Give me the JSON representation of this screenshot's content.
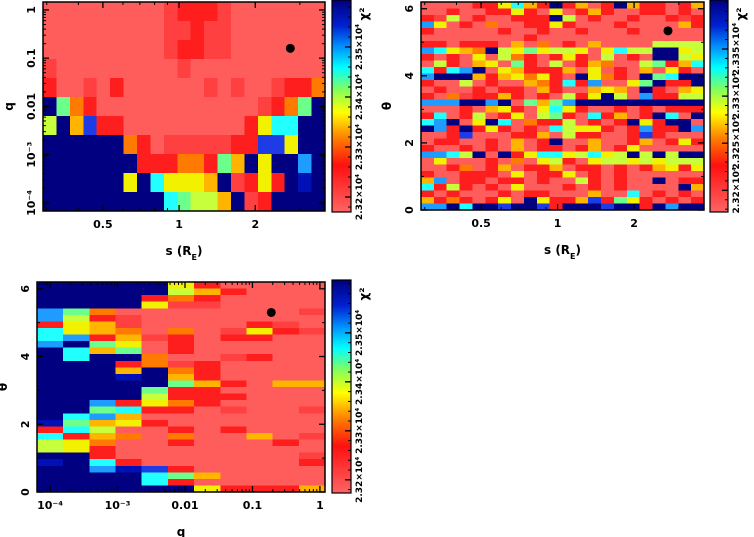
{
  "palette": {
    "P": "#ff5c5c",
    "r": "#ff4040",
    "R": "#ff1e1e",
    "O": "#ff7a00",
    "A": "#ffb400",
    "Y": "#f2f200",
    "L": "#c8ff3c",
    "G": "#6cff8c",
    "C": "#22ffff",
    "S": "#1e9cff",
    "U": "#1e3ce6",
    "D": "#0010b4",
    "N": "#000080"
  },
  "chart_data": [
    {
      "type": "heatmap",
      "title": "",
      "xlabel": "s (R_E)",
      "ylabel": "q",
      "xscale": "log",
      "xlim": [
        0.29,
        3.77
      ],
      "yscale": "log",
      "ylim": [
        6.8e-05,
        1.46
      ],
      "xticks": [
        {
          "v": 0.5,
          "label": "0.5"
        },
        {
          "v": 1,
          "label": "1"
        },
        {
          "v": 2,
          "label": "2"
        }
      ],
      "yticks": [
        {
          "v": 0.0001,
          "label": "10⁻⁴"
        },
        {
          "v": 0.001,
          "label": "10⁻³"
        },
        {
          "v": 0.01,
          "label": "0.01"
        },
        {
          "v": 0.1,
          "label": "0.1"
        },
        {
          "v": 1,
          "label": "1"
        }
      ],
      "best_fit": {
        "x": 2.75,
        "y": 0.16
      },
      "colorbar": {
        "label": "χ²",
        "clim": [
          23170,
          23594
        ],
        "ticks": [
          {
            "v": 23200,
            "label": "2.32×10⁴"
          },
          {
            "v": 23300,
            "label": "2.33×10⁴"
          },
          {
            "v": 23400,
            "label": "2.34×10⁴"
          },
          {
            "v": 23500,
            "label": "2.35×10⁴"
          }
        ]
      },
      "grid_rows_top_to_bottom": [
        "PPPPPPPPPrRRRrPPPPPPP",
        "PPPPPPPPPrrRrrPPPPPPP",
        "PPPPPPPPPrRRrrPPPPPPP",
        "rPPPPPPPPPrPPPPPPPPPP",
        "RPPrPRPPPPPPrPrPPrRRO",
        "NGORPPPPPPPPPPPPrROGN",
        "LNAURRPPPPPPPPPRYCCNN",
        "NNNNNNORPrrrrrRRUUYNN",
        "NNNNNNNRRROORGANYNNSN",
        "NNNNNNYNCYYYANrRYRNDN",
        "NNNNNNNNNCGLLANrRNNNN"
      ]
    },
    {
      "type": "heatmap",
      "title": "",
      "xlabel": "s (R_E)",
      "ylabel": "θ",
      "xscale": "log",
      "xlim": [
        0.29,
        3.77
      ],
      "yscale": "linear",
      "ylim": [
        0,
        6.2
      ],
      "xticks": [
        {
          "v": 0.5,
          "label": "0.5"
        },
        {
          "v": 1,
          "label": "1"
        },
        {
          "v": 2,
          "label": "2"
        }
      ],
      "yticks": [
        {
          "v": 0,
          "label": "0"
        },
        {
          "v": 2,
          "label": "2"
        },
        {
          "v": 4,
          "label": "4"
        },
        {
          "v": 6,
          "label": "6"
        }
      ],
      "best_fit": {
        "x": 2.72,
        "y": 5.34
      },
      "colorbar": {
        "label": "χ²",
        "clim": [
          23177,
          23402
        ],
        "ticks": [
          {
            "v": 23200,
            "label": "2.32×10⁴"
          },
          {
            "v": 23250,
            "label": "2.325×10⁴"
          },
          {
            "v": 23300,
            "label": "2.33×10⁴"
          },
          {
            "v": 23350,
            "label": "2.335×10⁴"
          }
        ]
      },
      "grid_rows_top_to_bottom": [
        "PPPPRRYCARNRAPRNARRPRA",
        "PPRPPRRYRPYPRARPPRRPRP",
        "RrLPRPPRRRNLPRPPRPPRrR",
        "SYPRPOPPRRYRPPPRPPPPAR",
        "RPPPPPRPPRPPRPPPRPPPPP",
        "PPPPPPPPRPPPPPPPPPPPPP",
        "RRPRRRPAPOPRPAPPPPLLLL",
        "SCYAONLYGYLLYPYCLLNNYL",
        "RPRPYPLORPRYRPLPRPNNLY",
        "PLRPAYPGRPLPRAOPPLGRAC",
        "CRCSNPYARRRAPYPRPAPYRP",
        "SNNNARAYOYRPNYORPNGCNN",
        "RPPLPRPPAORCRSPPYGNRRN",
        "PRPPRPRRPARPPAYAPNRPAY",
        "RPOrRRARPRPLRYNLPSRRLL",
        "SSSNNSNPGAGSNNNNNNNNNN",
        "PPPRPAYRPYCYRPPRPRPRRR",
        "RCPRLPRYPLGRPCRAPRNCPN",
        "CSNPYNCPORRLPRPRNYRNNP",
        "NSRNRYRPRPCLYYRPRSRRNS",
        "PPRUPPPRRAPLRRPPRURPPP",
        "PRRPPRPAPRNPPAPPRAPRYR",
        "RPPRPRPAPRRPRAPRYPPPPP",
        "SSCLNPNRYCCYLCYLNLNLNN",
        "PYPPPRPOPYLRPYLLYLYLLL",
        "PPROPRAPRRAPRRPRPRAYRY",
        "RPPRRRPYPRRYPRPRPPPPPP",
        "ASPRRPRRPRPPLRPRPPNPRR",
        "CRLRPRPYPPPRPRPRPPPPNA",
        "RPRPPPRPRRPPPAPPCPRPRP",
        "ARORPRYPNYRRAURGYRPRPR",
        "SSNCNNUNNURNNNUNNRNSNN"
      ]
    },
    {
      "type": "heatmap",
      "title": "",
      "xlabel": "q",
      "ylabel": "θ",
      "xscale": "log",
      "xlim": [
        6.4e-05,
        1.19
      ],
      "yscale": "linear",
      "ylim": [
        0,
        6.2
      ],
      "xticks": [
        {
          "v": 0.0001,
          "label": "10⁻⁴"
        },
        {
          "v": 0.001,
          "label": "10⁻³"
        },
        {
          "v": 0.01,
          "label": "0.01"
        },
        {
          "v": 0.1,
          "label": "0.1"
        },
        {
          "v": 1,
          "label": "1"
        }
      ],
      "yticks": [
        {
          "v": 0,
          "label": "0"
        },
        {
          "v": 2,
          "label": "2"
        },
        {
          "v": 4,
          "label": "4"
        },
        {
          "v": 6,
          "label": "6"
        }
      ],
      "best_fit": {
        "x": 0.19,
        "y": 5.3
      },
      "colorbar": {
        "label": "χ²",
        "clim": [
          23173,
          23608
        ],
        "ticks": [
          {
            "v": 23200,
            "label": "2.32×10⁴"
          },
          {
            "v": 23300,
            "label": "2.33×10⁴"
          },
          {
            "v": 23400,
            "label": "2.34×10⁴"
          },
          {
            "v": 23500,
            "label": "2.35×10⁴"
          }
        ]
      },
      "grid_rows_top_to_bottom": [
        "NNNNNYRPPPP",
        "NNNNNLARPPP",
        "NNNNRORPPPP",
        "NNNNYrrPPPP",
        "SGOPPPPPPPr",
        "SLRrPPPPPPP",
        "RYArPPPPRrP",
        "CYAOPOPrYRr",
        "CSRArRPRRPP",
        "SNGYPRPPPPP",
        "NCAGPRPPPPP",
        "NCNNOPPrRPP",
        "NNNROrRPPPP",
        "NNNANORPPPP",
        "NNNDNARPPPP",
        "NNNNNGARPAA",
        "NNNNGRRPPPP",
        "NNNNLRRRPPP",
        "NNSRYORPPPP",
        "NNGCRRPrPPr",
        "NCSAPPPPPPP",
        "DGAYRPPPPPP",
        "RCLPPRPRPPP",
        "CRAOPOPPAPr",
        "LYOPPRPPPRP",
        "LYRPPPPPPPP",
        "NNRPPPPPPPr",
        "DNCRPPPPPPR",
        "NNSDURPPPPP",
        "NNNNCGAPPPP",
        "NNNNCRPPPPP",
        "NNNNNNYRRRA"
      ]
    }
  ]
}
